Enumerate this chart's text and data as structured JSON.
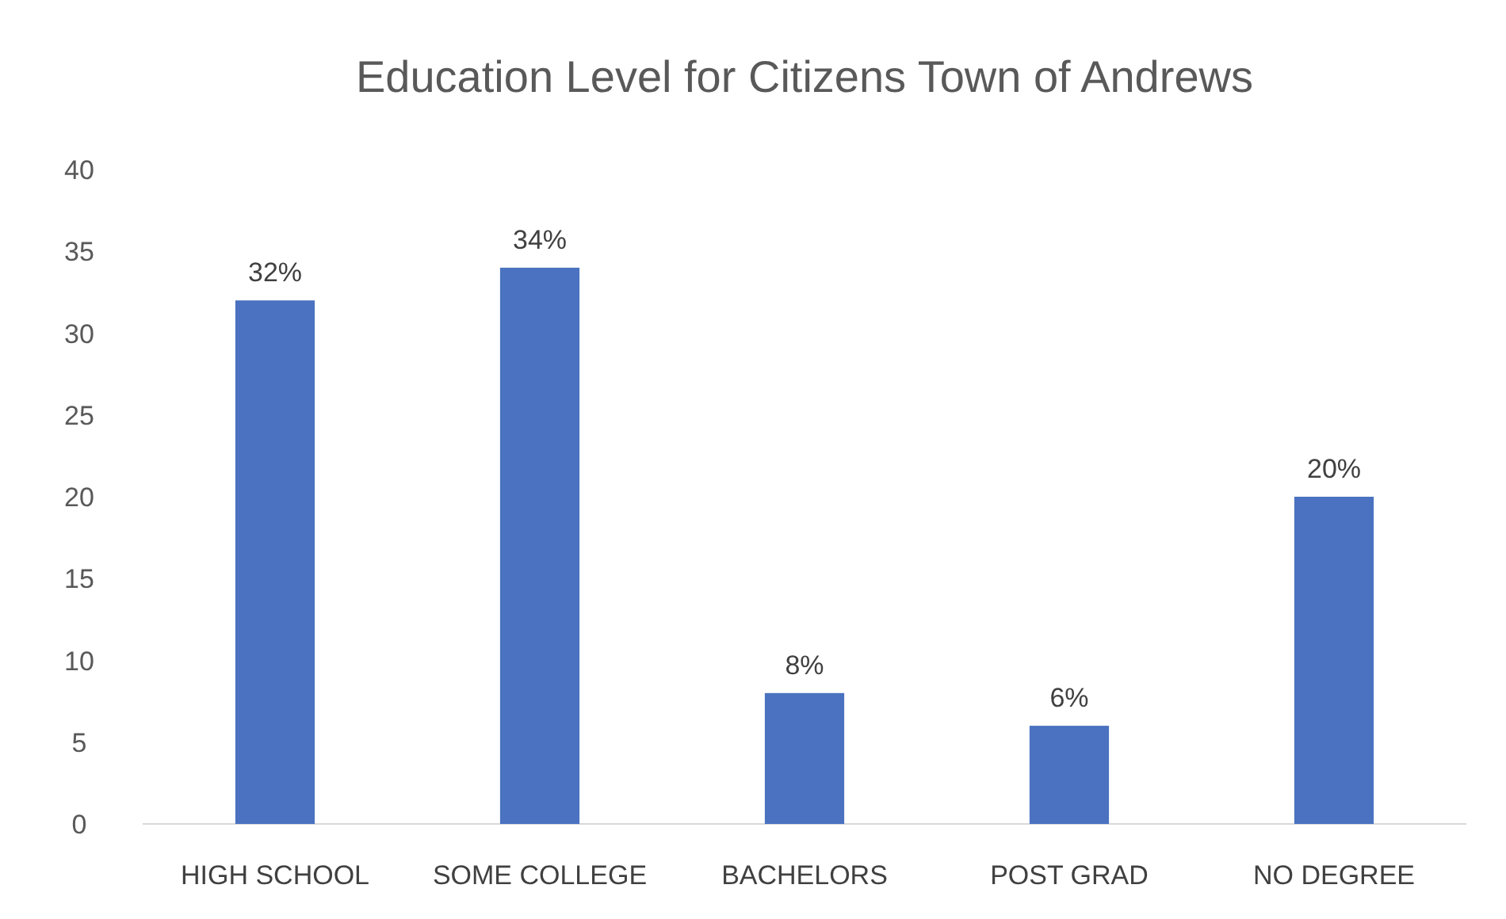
{
  "chart_data": {
    "type": "bar",
    "title": "Education Level for Citizens Town of Andrews",
    "categories": [
      "HIGH SCHOOL",
      "SOME COLLEGE",
      "BACHELORS",
      "POST GRAD",
      "NO DEGREE"
    ],
    "values": [
      32,
      34,
      8,
      6,
      20
    ],
    "value_labels": [
      "32%",
      "34%",
      "8%",
      "6%",
      "20%"
    ],
    "color": "#4a72c0",
    "ylim": [
      0,
      40
    ],
    "yticks": [
      0,
      5,
      10,
      15,
      20,
      25,
      30,
      35,
      40
    ],
    "grid": false
  }
}
